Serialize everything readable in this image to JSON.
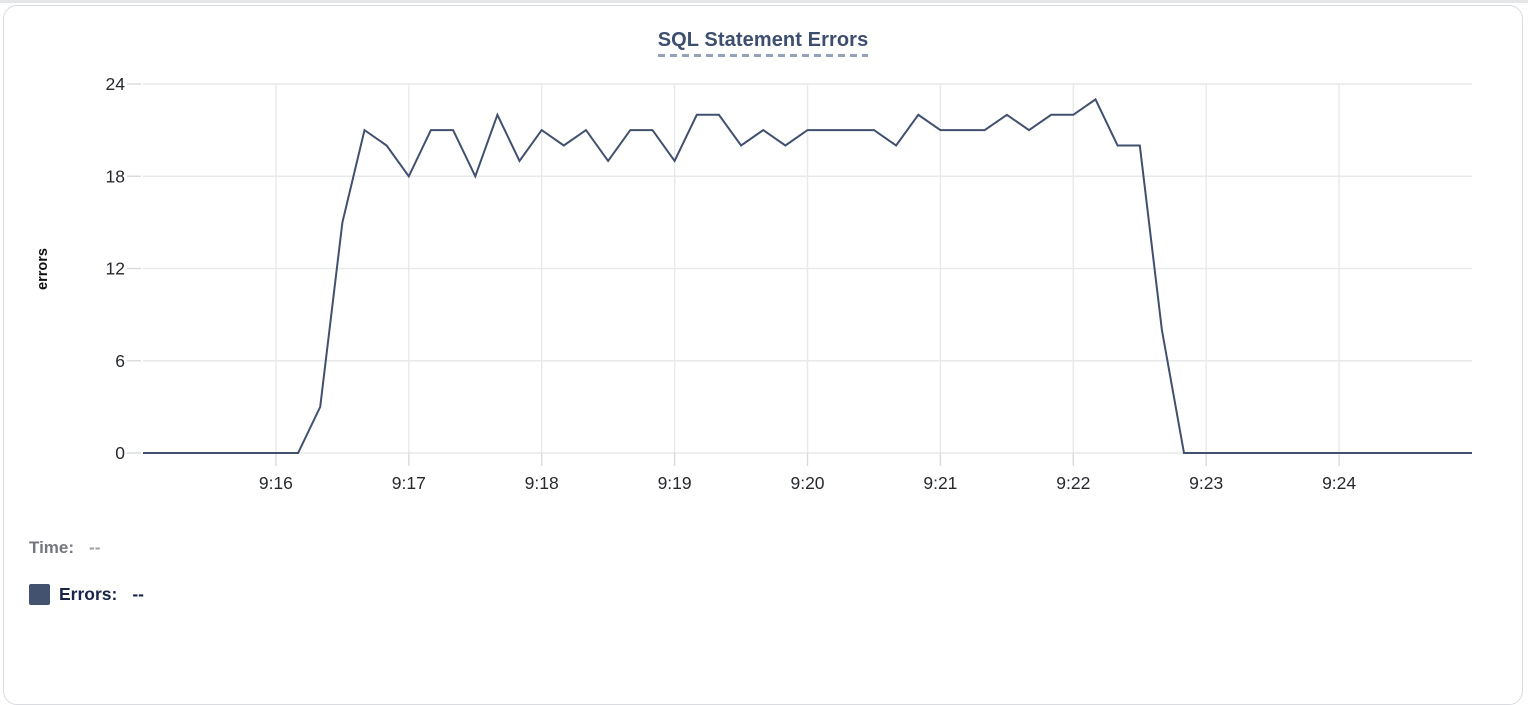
{
  "chart_data": {
    "type": "line",
    "title": "SQL Statement Errors",
    "xlabel": "",
    "ylabel": "errors",
    "ylim": [
      0,
      24
    ],
    "yticks": [
      0,
      6,
      12,
      18,
      24
    ],
    "x_range_seconds": [
      0,
      600
    ],
    "x_start_time": "9:15:00",
    "x_end_time": "9:25:00",
    "sample_interval_seconds": 10,
    "xtick_seconds": [
      60,
      120,
      180,
      240,
      300,
      360,
      420,
      480,
      540
    ],
    "xtick_labels": [
      "9:16",
      "9:17",
      "9:18",
      "9:19",
      "9:20",
      "9:21",
      "9:22",
      "9:23",
      "9:24"
    ],
    "grid": true,
    "legend_position": "bottom-left",
    "series": [
      {
        "name": "Errors",
        "color": "#41506e",
        "values": [
          0,
          0,
          0,
          0,
          0,
          0,
          0,
          0,
          3,
          15,
          21,
          20,
          18,
          21,
          21,
          18,
          22,
          19,
          21,
          20,
          21,
          19,
          21,
          21,
          19,
          22,
          22,
          20,
          21,
          20,
          21,
          21,
          21,
          21,
          20,
          22,
          21,
          21,
          21,
          22,
          21,
          22,
          22,
          23,
          20,
          20,
          8,
          0,
          0,
          0,
          0,
          0,
          0,
          0,
          0,
          0,
          0,
          0,
          0,
          0,
          0
        ]
      }
    ]
  },
  "tooltip_readout": {
    "time_label": "Time:",
    "time_value": "--",
    "errors_label": "Errors:",
    "errors_value": "--"
  },
  "colors": {
    "line": "#41506e",
    "legend_swatch": "#43536f",
    "title_text": "#3d4e6f",
    "title_underline": "#96a2ba",
    "gridline": "#e8e9eb",
    "tick": "#d8dadd",
    "axis_text": "#26292e",
    "time_label_text": "#74777d",
    "errors_label_text": "#192449",
    "card_border": "#d9dbe0"
  }
}
